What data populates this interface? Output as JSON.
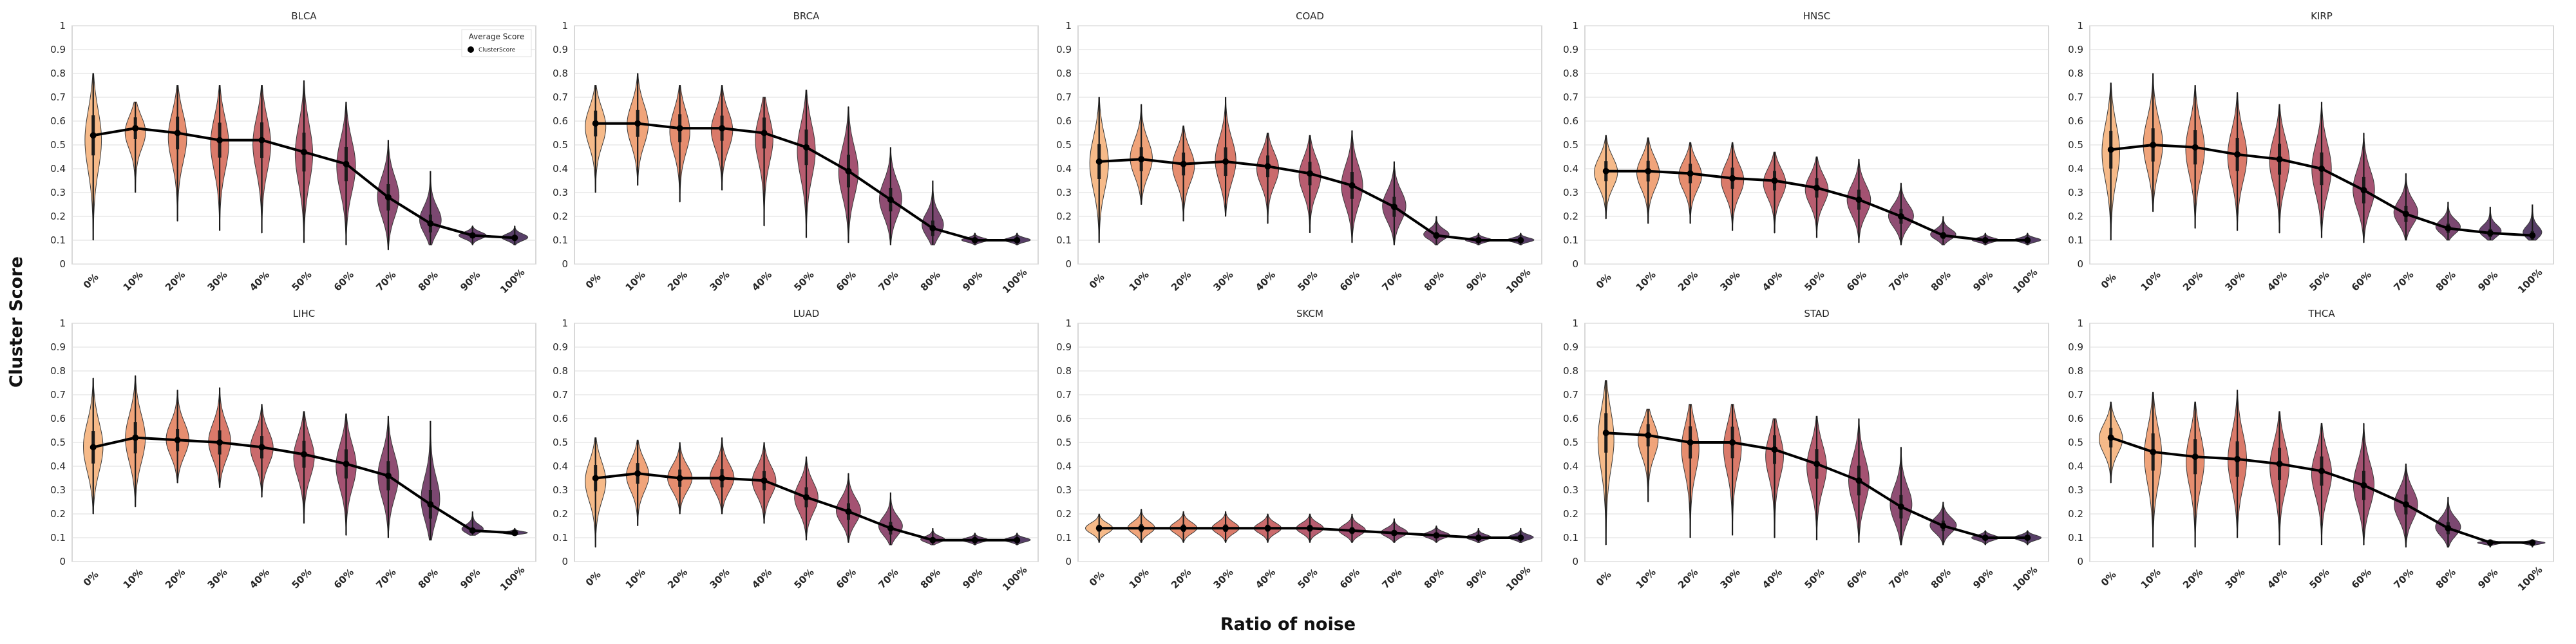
{
  "figure": {
    "xlabel": "Ratio of noise",
    "ylabel": "Cluster Score"
  },
  "legend": {
    "title": "Average Score",
    "entry": "ClusterScore"
  },
  "colors": {
    "violin_palette": [
      "#f5b27c",
      "#ee9a6c",
      "#e3815f",
      "#d66b5a",
      "#c45a5c",
      "#b04b60",
      "#9a3f63",
      "#833a64",
      "#6d3462",
      "#582e5e",
      "#452a58"
    ],
    "mean_line": "#000000",
    "grid": "#dcdcdc",
    "axes": "#bfbfbf"
  },
  "chart_data": [
    {
      "type": "violin",
      "title": "BLCA",
      "categories": [
        "0%",
        "10%",
        "20%",
        "30%",
        "40%",
        "50%",
        "60%",
        "70%",
        "80%",
        "90%",
        "100%"
      ],
      "ylim": [
        0,
        1
      ],
      "yticks": [
        "0",
        "0.1",
        "0.2",
        "0.3",
        "0.4",
        "0.5",
        "0.6",
        "0.7",
        "0.8",
        "0.9",
        "1"
      ],
      "grid": true,
      "legend": "top-right",
      "mean": [
        0.54,
        0.57,
        0.55,
        0.52,
        0.52,
        0.47,
        0.42,
        0.28,
        0.17,
        0.12,
        0.11
      ],
      "min": [
        0.1,
        0.3,
        0.18,
        0.14,
        0.13,
        0.09,
        0.08,
        0.06,
        0.08,
        0.08,
        0.08
      ],
      "max": [
        0.8,
        0.68,
        0.75,
        0.75,
        0.75,
        0.77,
        0.68,
        0.52,
        0.39,
        0.16,
        0.16
      ]
    },
    {
      "type": "violin",
      "title": "BRCA",
      "categories": [
        "0%",
        "10%",
        "20%",
        "30%",
        "40%",
        "50%",
        "60%",
        "70%",
        "80%",
        "90%",
        "100%"
      ],
      "ylim": [
        0,
        1
      ],
      "yticks": [
        "0",
        "0.1",
        "0.2",
        "0.3",
        "0.4",
        "0.5",
        "0.6",
        "0.7",
        "0.8",
        "0.9",
        "1"
      ],
      "grid": true,
      "mean": [
        0.59,
        0.59,
        0.57,
        0.57,
        0.55,
        0.49,
        0.39,
        0.27,
        0.15,
        0.1,
        0.1
      ],
      "min": [
        0.3,
        0.33,
        0.26,
        0.31,
        0.16,
        0.11,
        0.09,
        0.08,
        0.08,
        0.08,
        0.08
      ],
      "max": [
        0.75,
        0.8,
        0.75,
        0.75,
        0.7,
        0.73,
        0.66,
        0.49,
        0.35,
        0.13,
        0.13
      ]
    },
    {
      "type": "violin",
      "title": "COAD",
      "categories": [
        "0%",
        "10%",
        "20%",
        "30%",
        "40%",
        "50%",
        "60%",
        "70%",
        "80%",
        "90%",
        "100%"
      ],
      "ylim": [
        0,
        1
      ],
      "yticks": [
        "0",
        "0.1",
        "0.2",
        "0.3",
        "0.4",
        "0.5",
        "0.6",
        "0.7",
        "0.8",
        "0.9",
        "1"
      ],
      "grid": true,
      "mean": [
        0.43,
        0.44,
        0.42,
        0.43,
        0.41,
        0.38,
        0.33,
        0.24,
        0.12,
        0.1,
        0.1
      ],
      "min": [
        0.09,
        0.25,
        0.18,
        0.2,
        0.17,
        0.13,
        0.09,
        0.08,
        0.08,
        0.08,
        0.08
      ],
      "max": [
        0.7,
        0.67,
        0.58,
        0.7,
        0.55,
        0.54,
        0.56,
        0.43,
        0.2,
        0.13,
        0.13
      ]
    },
    {
      "type": "violin",
      "title": "HNSC",
      "categories": [
        "0%",
        "10%",
        "20%",
        "30%",
        "40%",
        "50%",
        "60%",
        "70%",
        "80%",
        "90%",
        "100%"
      ],
      "ylim": [
        0,
        1
      ],
      "yticks": [
        "0",
        "0.1",
        "0.2",
        "0.3",
        "0.4",
        "0.5",
        "0.6",
        "0.7",
        "0.8",
        "0.9",
        "1"
      ],
      "grid": true,
      "mean": [
        0.39,
        0.39,
        0.38,
        0.36,
        0.35,
        0.32,
        0.27,
        0.2,
        0.12,
        0.1,
        0.1
      ],
      "min": [
        0.19,
        0.17,
        0.17,
        0.14,
        0.13,
        0.11,
        0.09,
        0.08,
        0.08,
        0.08,
        0.08
      ],
      "max": [
        0.54,
        0.53,
        0.51,
        0.51,
        0.47,
        0.45,
        0.44,
        0.34,
        0.2,
        0.13,
        0.13
      ]
    },
    {
      "type": "violin",
      "title": "KIRP",
      "categories": [
        "0%",
        "10%",
        "20%",
        "30%",
        "40%",
        "50%",
        "60%",
        "70%",
        "80%",
        "90%",
        "100%"
      ],
      "ylim": [
        0,
        1
      ],
      "yticks": [
        "0",
        "0.1",
        "0.2",
        "0.3",
        "0.4",
        "0.5",
        "0.6",
        "0.7",
        "0.8",
        "0.9",
        "1"
      ],
      "grid": true,
      "mean": [
        0.48,
        0.5,
        0.49,
        0.46,
        0.44,
        0.4,
        0.31,
        0.21,
        0.15,
        0.13,
        0.12
      ],
      "min": [
        0.1,
        0.22,
        0.15,
        0.14,
        0.13,
        0.11,
        0.09,
        0.1,
        0.1,
        0.1,
        0.1
      ],
      "max": [
        0.76,
        0.8,
        0.75,
        0.72,
        0.67,
        0.68,
        0.55,
        0.38,
        0.26,
        0.24,
        0.25
      ]
    },
    {
      "type": "violin",
      "title": "LIHC",
      "categories": [
        "0%",
        "10%",
        "20%",
        "30%",
        "40%",
        "50%",
        "60%",
        "70%",
        "80%",
        "90%",
        "100%"
      ],
      "ylim": [
        0,
        1
      ],
      "yticks": [
        "0",
        "0.1",
        "0.2",
        "0.3",
        "0.4",
        "0.5",
        "0.6",
        "0.7",
        "0.8",
        "0.9",
        "1"
      ],
      "grid": true,
      "mean": [
        0.48,
        0.52,
        0.51,
        0.5,
        0.48,
        0.45,
        0.41,
        0.36,
        0.24,
        0.13,
        0.12
      ],
      "min": [
        0.2,
        0.23,
        0.33,
        0.31,
        0.27,
        0.16,
        0.11,
        0.1,
        0.09,
        0.11,
        0.11
      ],
      "max": [
        0.77,
        0.78,
        0.72,
        0.73,
        0.66,
        0.63,
        0.62,
        0.61,
        0.59,
        0.21,
        0.14
      ]
    },
    {
      "type": "violin",
      "title": "LUAD",
      "categories": [
        "0%",
        "10%",
        "20%",
        "30%",
        "40%",
        "50%",
        "60%",
        "70%",
        "80%",
        "90%",
        "100%"
      ],
      "ylim": [
        0,
        1
      ],
      "yticks": [
        "0",
        "0.1",
        "0.2",
        "0.3",
        "0.4",
        "0.5",
        "0.6",
        "0.7",
        "0.8",
        "0.9",
        "1"
      ],
      "grid": true,
      "mean": [
        0.35,
        0.37,
        0.35,
        0.35,
        0.34,
        0.27,
        0.21,
        0.14,
        0.09,
        0.09,
        0.09
      ],
      "min": [
        0.06,
        0.15,
        0.2,
        0.2,
        0.16,
        0.09,
        0.08,
        0.07,
        0.07,
        0.07,
        0.07
      ],
      "max": [
        0.52,
        0.51,
        0.5,
        0.52,
        0.5,
        0.44,
        0.37,
        0.29,
        0.14,
        0.12,
        0.12
      ]
    },
    {
      "type": "violin",
      "title": "SKCM",
      "categories": [
        "0%",
        "10%",
        "20%",
        "30%",
        "40%",
        "50%",
        "60%",
        "70%",
        "80%",
        "90%",
        "100%"
      ],
      "ylim": [
        0,
        1
      ],
      "yticks": [
        "0",
        "0.1",
        "0.2",
        "0.3",
        "0.4",
        "0.5",
        "0.6",
        "0.7",
        "0.8",
        "0.9",
        "1"
      ],
      "grid": true,
      "mean": [
        0.14,
        0.14,
        0.14,
        0.14,
        0.14,
        0.14,
        0.13,
        0.12,
        0.11,
        0.1,
        0.1
      ],
      "min": [
        0.08,
        0.08,
        0.08,
        0.08,
        0.08,
        0.08,
        0.08,
        0.08,
        0.08,
        0.08,
        0.08
      ],
      "max": [
        0.2,
        0.22,
        0.21,
        0.21,
        0.2,
        0.2,
        0.2,
        0.18,
        0.15,
        0.14,
        0.14
      ]
    },
    {
      "type": "violin",
      "title": "STAD",
      "categories": [
        "0%",
        "10%",
        "20%",
        "30%",
        "40%",
        "50%",
        "60%",
        "70%",
        "80%",
        "90%",
        "100%"
      ],
      "ylim": [
        0,
        1
      ],
      "yticks": [
        "0",
        "0.1",
        "0.2",
        "0.3",
        "0.4",
        "0.5",
        "0.6",
        "0.7",
        "0.8",
        "0.9",
        "1"
      ],
      "grid": true,
      "mean": [
        0.54,
        0.53,
        0.5,
        0.5,
        0.47,
        0.41,
        0.34,
        0.23,
        0.15,
        0.1,
        0.1
      ],
      "min": [
        0.07,
        0.25,
        0.1,
        0.11,
        0.1,
        0.09,
        0.08,
        0.07,
        0.07,
        0.07,
        0.07
      ],
      "max": [
        0.76,
        0.64,
        0.66,
        0.66,
        0.6,
        0.61,
        0.6,
        0.48,
        0.25,
        0.13,
        0.13
      ]
    },
    {
      "type": "violin",
      "title": "THCA",
      "categories": [
        "0%",
        "10%",
        "20%",
        "30%",
        "40%",
        "50%",
        "60%",
        "70%",
        "80%",
        "90%",
        "100%"
      ],
      "ylim": [
        0,
        1
      ],
      "yticks": [
        "0",
        "0.1",
        "0.2",
        "0.3",
        "0.4",
        "0.5",
        "0.6",
        "0.7",
        "0.8",
        "0.9",
        "1"
      ],
      "grid": true,
      "mean": [
        0.52,
        0.46,
        0.44,
        0.43,
        0.41,
        0.38,
        0.32,
        0.24,
        0.14,
        0.08,
        0.08
      ],
      "min": [
        0.33,
        0.06,
        0.06,
        0.1,
        0.07,
        0.07,
        0.07,
        0.06,
        0.06,
        0.06,
        0.06
      ],
      "max": [
        0.67,
        0.71,
        0.67,
        0.72,
        0.63,
        0.58,
        0.58,
        0.41,
        0.27,
        0.09,
        0.09
      ]
    }
  ]
}
